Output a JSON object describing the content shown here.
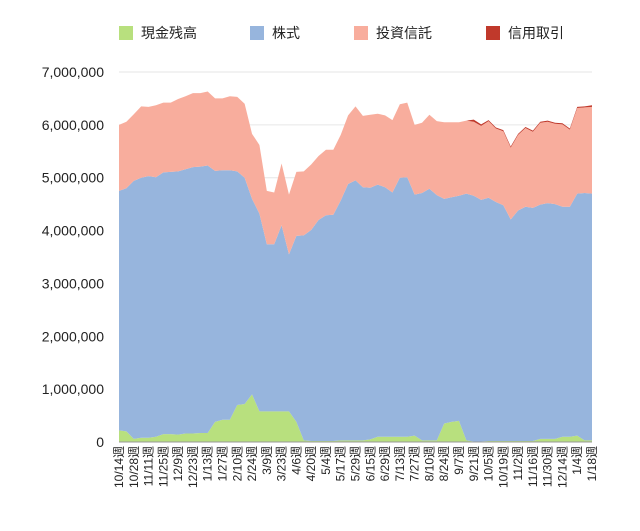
{
  "chart_data": {
    "type": "area",
    "stacked": true,
    "legend_position": "top",
    "title": "",
    "xlabel": "",
    "ylabel": "",
    "ylim": [
      0,
      7000000
    ],
    "yticks": [
      "0",
      "1,000,000",
      "2,000,000",
      "3,000,000",
      "4,000,000",
      "5,000,000",
      "6,000,000",
      "7,000,000"
    ],
    "grid": true,
    "x": [
      "10/14週",
      "10/21週",
      "10/28週",
      "11/4週",
      "11/11週",
      "11/18週",
      "11/25週",
      "12/2週",
      "12/9週",
      "12/16週",
      "12/23週",
      "12/30週",
      "1/13週",
      "1/20週",
      "1/27週",
      "2/3週",
      "2/10週",
      "2/17週",
      "2/24週",
      "3/2週",
      "3/9週",
      "3/16週",
      "3/23週",
      "3/30週",
      "4/6週",
      "4/13週",
      "4/20週",
      "4/27週",
      "5/4週",
      "5/11週",
      "5/17週",
      "5/24週",
      "5/29週",
      "6/8週",
      "6/15週",
      "6/22週",
      "6/29週",
      "7/6週",
      "7/13週",
      "7/20週",
      "7/27週",
      "8/3週",
      "8/10週",
      "8/17週",
      "8/24週",
      "8/31週",
      "9/7週",
      "9/14週",
      "9/21週",
      "9/28週",
      "10/5週",
      "10/12週",
      "10/19週",
      "10/26週",
      "11/2週",
      "11/9週",
      "11/16週",
      "11/23週",
      "11/30週",
      "12/7週",
      "12/14週",
      "12/21週",
      "1/4週",
      "1/11週",
      "1/18週"
    ],
    "x_labels": [
      "10/14週",
      "10/28週",
      "11/11週",
      "11/25週",
      "12/9週",
      "12/23週",
      "1/13週",
      "1/27週",
      "2/10週",
      "2/24週",
      "3/9週",
      "3/23週",
      "4/6週",
      "4/20週",
      "5/4週",
      "5/17週",
      "5/29週",
      "6/15週",
      "6/29週",
      "7/13週",
      "7/27週",
      "8/10週",
      "8/24週",
      "9/7週",
      "9/21週",
      "10/5週",
      "10/19週",
      "11/2週",
      "11/16週",
      "11/30週",
      "12/14週",
      "1/4週",
      "1/18週"
    ],
    "series": [
      {
        "name": "現金残高",
        "color": "#b8e07e",
        "values": [
          220000,
          200000,
          60000,
          80000,
          80000,
          100000,
          150000,
          150000,
          140000,
          160000,
          160000,
          170000,
          170000,
          380000,
          420000,
          420000,
          700000,
          720000,
          900000,
          580000,
          580000,
          580000,
          580000,
          580000,
          380000,
          30000,
          20000,
          20000,
          20000,
          20000,
          30000,
          30000,
          30000,
          30000,
          50000,
          100000,
          100000,
          100000,
          100000,
          100000,
          120000,
          30000,
          30000,
          30000,
          350000,
          380000,
          400000,
          30000,
          10000,
          10000,
          20000,
          20000,
          20000,
          20000,
          20000,
          20000,
          20000,
          60000,
          60000,
          60000,
          100000,
          100000,
          120000,
          30000,
          30000
        ]
      },
      {
        "name": "株式",
        "color": "#97b5dd",
        "values": [
          4530000,
          4600000,
          4880000,
          4920000,
          4950000,
          4910000,
          4950000,
          4960000,
          4980000,
          5000000,
          5040000,
          5040000,
          5060000,
          4750000,
          4720000,
          4720000,
          4420000,
          4280000,
          3700000,
          3740000,
          3160000,
          3160000,
          3520000,
          2970000,
          3520000,
          3880000,
          3990000,
          4180000,
          4270000,
          4280000,
          4540000,
          4850000,
          4920000,
          4790000,
          4760000,
          4770000,
          4720000,
          4620000,
          4900000,
          4910000,
          4560000,
          4680000,
          4760000,
          4640000,
          4250000,
          4250000,
          4260000,
          4670000,
          4650000,
          4570000,
          4600000,
          4520000,
          4460000,
          4190000,
          4360000,
          4430000,
          4410000,
          4430000,
          4460000,
          4440000,
          4350000,
          4350000,
          4580000,
          4680000,
          4670000
        ]
      },
      {
        "name": "投資信託",
        "color": "#f8ad9d",
        "values": [
          1250000,
          1260000,
          1260000,
          1350000,
          1310000,
          1360000,
          1320000,
          1310000,
          1370000,
          1380000,
          1400000,
          1390000,
          1400000,
          1370000,
          1360000,
          1400000,
          1410000,
          1400000,
          1230000,
          1300000,
          1010000,
          980000,
          1170000,
          1130000,
          1210000,
          1210000,
          1240000,
          1210000,
          1240000,
          1230000,
          1240000,
          1300000,
          1400000,
          1350000,
          1380000,
          1340000,
          1360000,
          1370000,
          1390000,
          1410000,
          1320000,
          1330000,
          1400000,
          1400000,
          1450000,
          1420000,
          1390000,
          1380000,
          1400000,
          1400000,
          1450000,
          1390000,
          1400000,
          1360000,
          1430000,
          1490000,
          1440000,
          1550000,
          1540000,
          1520000,
          1560000,
          1460000,
          1620000,
          1620000,
          1640000
        ]
      },
      {
        "name": "信用取引",
        "color": "#c0392b",
        "values": [
          0,
          0,
          0,
          0,
          0,
          0,
          0,
          0,
          0,
          0,
          0,
          0,
          0,
          0,
          0,
          0,
          0,
          0,
          0,
          0,
          0,
          0,
          0,
          0,
          0,
          0,
          0,
          0,
          0,
          0,
          0,
          0,
          0,
          0,
          0,
          0,
          0,
          0,
          0,
          0,
          0,
          0,
          0,
          0,
          0,
          0,
          0,
          0,
          40000,
          30000,
          20000,
          20000,
          20000,
          20000,
          20000,
          20000,
          20000,
          20000,
          20000,
          20000,
          20000,
          20000,
          20000,
          20000,
          30000
        ]
      }
    ]
  }
}
